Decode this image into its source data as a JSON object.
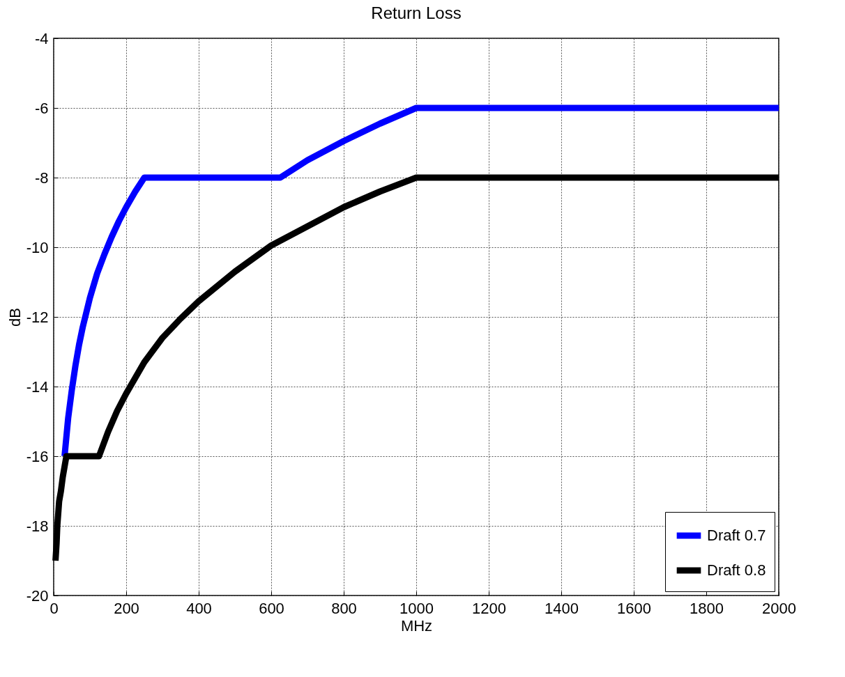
{
  "chart_data": {
    "type": "line",
    "title": "Return Loss",
    "xlabel": "MHz",
    "ylabel": "dB",
    "xlim": [
      0,
      2000
    ],
    "xticks": [
      0,
      200,
      400,
      600,
      800,
      1000,
      1200,
      1400,
      1600,
      1800,
      2000
    ],
    "ylim": [
      -20,
      -4
    ],
    "yticks": [
      -20,
      -18,
      -16,
      -14,
      -12,
      -10,
      -8,
      -6,
      -4
    ],
    "grid": true,
    "legend": "bottom right",
    "line_style": "solid",
    "series": [
      {
        "name": "Draft 0.7",
        "color": "#0000ff",
        "x": [
          30,
          40,
          50,
          60,
          70,
          80,
          100,
          120,
          140,
          160,
          180,
          200,
          225,
          250,
          625,
          700,
          800,
          900,
          1000,
          2000
        ],
        "values": [
          -16,
          -14.9,
          -14.1,
          -13.4,
          -12.8,
          -12.3,
          -11.45,
          -10.75,
          -10.2,
          -9.7,
          -9.25,
          -8.85,
          -8.4,
          -8,
          -8,
          -7.5,
          -6.95,
          -6.45,
          -6,
          -6
        ]
      },
      {
        "name": "Draft 0.8",
        "color": "#000000",
        "x": [
          5,
          8,
          10,
          15,
          20,
          25,
          30,
          35,
          125,
          150,
          175,
          200,
          250,
          300,
          350,
          400,
          500,
          600,
          700,
          800,
          900,
          1000,
          2000
        ],
        "values": [
          -19,
          -18.5,
          -18,
          -17.3,
          -17,
          -16.6,
          -16.3,
          -16,
          -16,
          -15.3,
          -14.7,
          -14.2,
          -13.3,
          -12.6,
          -12.05,
          -11.55,
          -10.7,
          -9.95,
          -9.4,
          -8.85,
          -8.4,
          -8,
          -8
        ]
      }
    ]
  }
}
